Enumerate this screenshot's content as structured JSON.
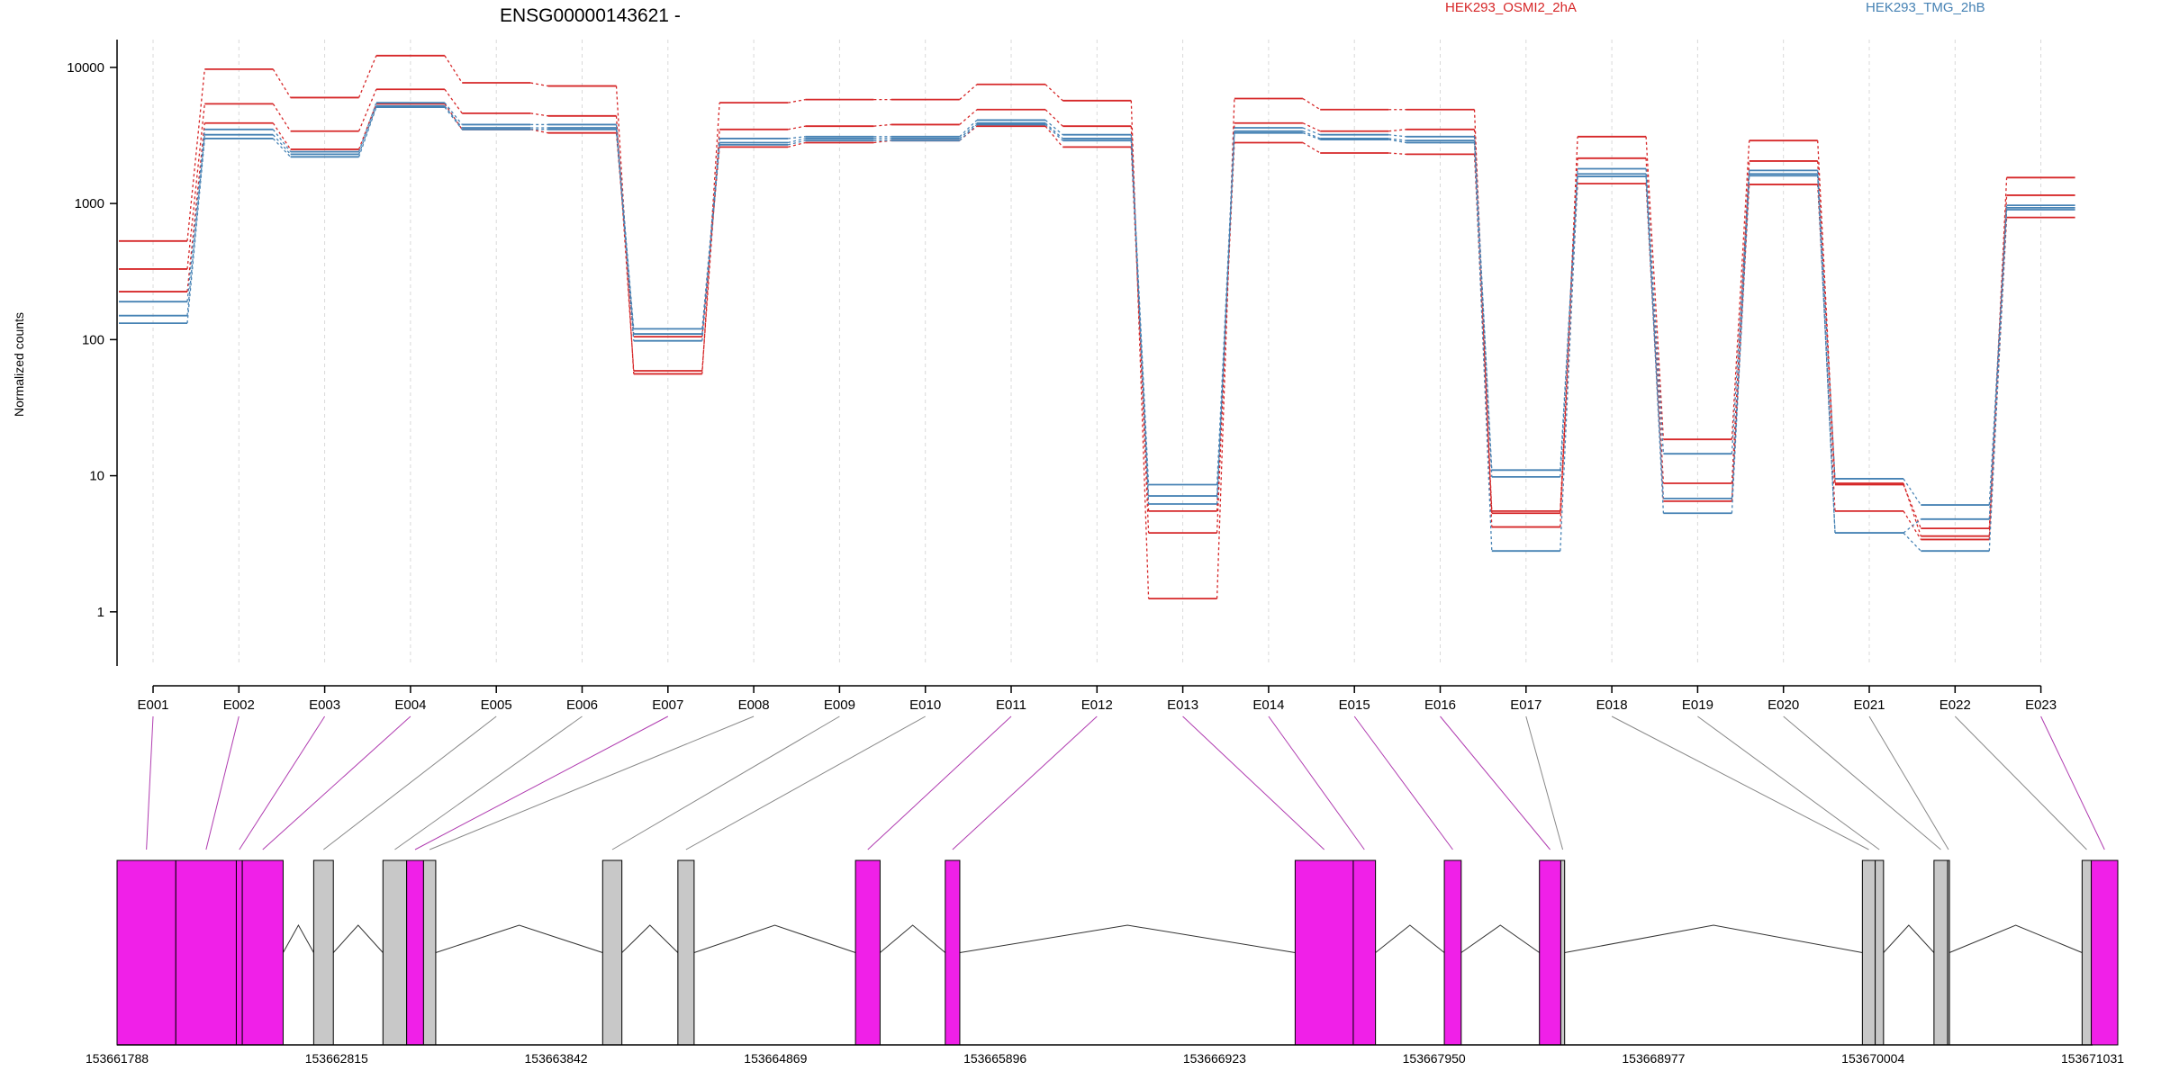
{
  "chart_data": {
    "type": "line",
    "title": "ENSG00000143621 -",
    "ylabel": "Normalized counts",
    "xlabel": "",
    "y_scale": "log",
    "ylim": [
      0.4,
      16000
    ],
    "y_ticks": [
      1,
      10,
      100,
      1000,
      10000
    ],
    "y_tick_labels": [
      "1",
      "10",
      "100",
      "1000",
      "10000"
    ],
    "grid": "vertical dashed at exon centers",
    "legend": [
      {
        "label": "HEK293_OSMI2_2hA",
        "color": "#d62728"
      },
      {
        "label": "HEK293_TMG_2hB",
        "color": "#4682b4"
      }
    ],
    "categories": [
      "E001",
      "E002",
      "E003",
      "E004",
      "E005",
      "E006",
      "E007",
      "E008",
      "E009",
      "E010",
      "E011",
      "E012",
      "E013",
      "E014",
      "E015",
      "E016",
      "E017",
      "E018",
      "E019",
      "E020",
      "E021",
      "E022",
      "E023"
    ],
    "series": [
      {
        "group": "HEK293_OSMI2_2hA",
        "color": "#d62728",
        "values": [
          530,
          9700,
          6000,
          12200,
          7700,
          7300,
          56,
          5500,
          5800,
          5800,
          7500,
          5700,
          1.25,
          5900,
          4900,
          4900,
          4.2,
          3100,
          18.5,
          2900,
          8.8,
          3.6,
          1550
        ]
      },
      {
        "group": "HEK293_OSMI2_2hA",
        "color": "#d62728",
        "values": [
          330,
          5400,
          3400,
          6900,
          4600,
          4400,
          59,
          3500,
          3700,
          3800,
          4900,
          3700,
          3.8,
          3900,
          3400,
          3500,
          5.5,
          2150,
          8.8,
          2050,
          8.6,
          4.1,
          1150
        ]
      },
      {
        "group": "HEK293_OSMI2_2hA",
        "color": "#d62728",
        "values": [
          225,
          3900,
          2500,
          5400,
          3500,
          3300,
          105,
          2600,
          2800,
          2900,
          3700,
          2600,
          5.5,
          2800,
          2350,
          2300,
          5.3,
          1400,
          6.5,
          1380,
          5.5,
          3.4,
          790
        ]
      },
      {
        "group": "HEK293_TMG_2hB",
        "color": "#4682b4",
        "values": [
          190,
          3500,
          2400,
          5500,
          3800,
          3800,
          120,
          3000,
          3100,
          3100,
          4100,
          3200,
          8.6,
          3600,
          3200,
          3100,
          11,
          1800,
          14.5,
          1750,
          9.5,
          6.1,
          970
        ]
      },
      {
        "group": "HEK293_TMG_2hB",
        "color": "#4682b4",
        "values": [
          150,
          3200,
          2300,
          5200,
          3600,
          3600,
          110,
          2800,
          3000,
          3000,
          3900,
          3000,
          7.1,
          3400,
          3000,
          2900,
          9.8,
          1650,
          6.8,
          1650,
          3.8,
          4.8,
          930
        ]
      },
      {
        "group": "HEK293_TMG_2hB",
        "color": "#4682b4",
        "values": [
          132,
          3000,
          2200,
          5100,
          3500,
          3500,
          98,
          2700,
          2900,
          2900,
          3800,
          2900,
          6.2,
          3300,
          2950,
          2800,
          2.8,
          1580,
          5.3,
          1600,
          3.8,
          2.8,
          900
        ]
      }
    ],
    "gene_model": {
      "coord_ticks": [
        "153661788",
        "153662815",
        "153663842",
        "153664869",
        "153665896",
        "153666923",
        "153667950",
        "153668977",
        "153670004",
        "153671031"
      ],
      "coord_range": [
        153661788,
        153671031
      ],
      "exons": [
        {
          "start": 153661788,
          "end": 153662063,
          "color": "#f020e8"
        },
        {
          "start": 153662063,
          "end": 153662346,
          "color": "#f020e8"
        },
        {
          "start": 153662346,
          "end": 153662374,
          "color": "#f020e8"
        },
        {
          "start": 153662374,
          "end": 153662565,
          "color": "#f020e8"
        },
        {
          "start": 153662708,
          "end": 153662800,
          "color": "#c8c8c8"
        },
        {
          "start": 153663032,
          "end": 153663143,
          "color": "#c8c8c8"
        },
        {
          "start": 153663143,
          "end": 153663222,
          "color": "#f020e8"
        },
        {
          "start": 153663222,
          "end": 153663279,
          "color": "#c8c8c8"
        },
        {
          "start": 153664060,
          "end": 153664150,
          "color": "#c8c8c8"
        },
        {
          "start": 153664412,
          "end": 153664488,
          "color": "#c8c8c8"
        },
        {
          "start": 153665243,
          "end": 153665358,
          "color": "#f020e8"
        },
        {
          "start": 153665663,
          "end": 153665731,
          "color": "#f020e8"
        },
        {
          "start": 153667300,
          "end": 153667572,
          "color": "#f020e8"
        },
        {
          "start": 153667572,
          "end": 153667676,
          "color": "#f020e8"
        },
        {
          "start": 153667998,
          "end": 153668077,
          "color": "#f020e8"
        },
        {
          "start": 153668443,
          "end": 153668543,
          "color": "#f020e8"
        },
        {
          "start": 153668543,
          "end": 153668561,
          "color": "#c8c8c8"
        },
        {
          "start": 153669954,
          "end": 153670014,
          "color": "#c8c8c8"
        },
        {
          "start": 153670014,
          "end": 153670053,
          "color": "#c8c8c8"
        },
        {
          "start": 153670289,
          "end": 153670353,
          "color": "#c8c8c8"
        },
        {
          "start": 153670353,
          "end": 153670361,
          "color": "#c8c8c8"
        },
        {
          "start": 153670982,
          "end": 153671025,
          "color": "#c8c8c8"
        },
        {
          "start": 153671025,
          "end": 153671149,
          "color": "#f020e8"
        }
      ]
    }
  }
}
